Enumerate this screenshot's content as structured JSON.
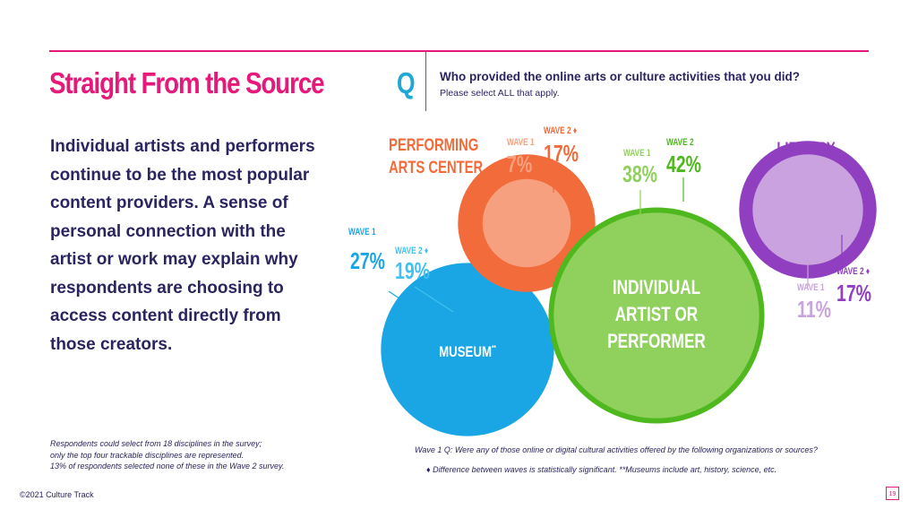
{
  "header": {
    "title": "Straight From the Source",
    "q_mark": "Q",
    "question": "Who provided the online arts or culture activities that you did?",
    "instruction": "Please select ALL that apply."
  },
  "body_text": "Individual artists and performers continue to be the most popular content providers. A sense of personal connection with the artist or work may explain why respondents are choosing to access content directly from those creators.",
  "footnotes": {
    "lines": [
      "Respondents could select from 18 disciplines in the survey;",
      "only the top four trackable disciplines are represented.",
      "13% of respondents selected none of these in the Wave 2 survey."
    ],
    "source": "Wave 1 Q: Were any of those online or digital cultural activities offered by the following organizations or sources?",
    "difference_note": "Difference between waves is statistically significant.  **Museums include art, history, science, etc.",
    "diamond": "♦"
  },
  "copyright": "©2021 Culture Track",
  "page_number": "19",
  "chart_data": {
    "type": "bubble",
    "series": [
      "WAVE 1",
      "WAVE 2"
    ],
    "categories": [
      {
        "name": "MUSEUM",
        "name_suffix": "**",
        "wave1": 27,
        "wave2": 19,
        "wave2_significant": true,
        "color_outer": "#42c0f0",
        "color_inner": "#1aa6e4"
      },
      {
        "name": "PERFORMING ARTS CENTER",
        "wave1": 7,
        "wave2": 17,
        "wave2_significant": true,
        "color_outer": "#f26b3a",
        "color_inner": "#f7a080"
      },
      {
        "name": "INDIVIDUAL ARTIST OR PERFORMER",
        "wave1": 38,
        "wave2": 42,
        "wave2_significant": false,
        "color_outer": "#4fb81f",
        "color_inner": "#8fd15c"
      },
      {
        "name": "LIBRARY",
        "wave1": 11,
        "wave2": 17,
        "wave2_significant": true,
        "color_outer": "#8f3fbf",
        "color_inner": "#c9a2df"
      }
    ],
    "unit": "%",
    "inner_circle": "WAVE 1",
    "outer_circle": "WAVE 2"
  }
}
